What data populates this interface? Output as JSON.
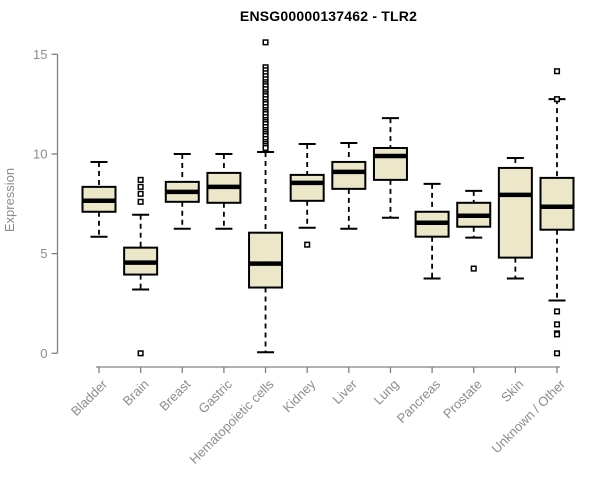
{
  "title": "ENSG00000137462 - TLR2",
  "chart_data": {
    "type": "boxplot",
    "title": "ENSG00000137462 - TLR2",
    "xlabel": "",
    "ylabel": "Expression",
    "ylim": [
      0,
      15.6
    ],
    "yticks": [
      0,
      5,
      10,
      15
    ],
    "grid": false,
    "legend": "none",
    "categories": [
      "Bladder",
      "Brain",
      "Breast",
      "Gastric",
      "Hematopoietic cells",
      "Kidney",
      "Liver",
      "Lung",
      "Pancreas",
      "Prostate",
      "Skin",
      "Unknown / Other"
    ],
    "boxes": [
      {
        "category": "Bladder",
        "low": 5.85,
        "q1": 7.1,
        "median": 7.65,
        "q3": 8.35,
        "high": 9.6,
        "outliers": []
      },
      {
        "category": "Brain",
        "low": 3.2,
        "q1": 3.95,
        "median": 4.55,
        "q3": 5.3,
        "high": 6.95,
        "outliers": [
          8.7,
          8.35,
          8.0,
          7.6,
          0.0
        ]
      },
      {
        "category": "Breast",
        "low": 6.25,
        "q1": 7.6,
        "median": 8.1,
        "q3": 8.6,
        "high": 10.0,
        "outliers": []
      },
      {
        "category": "Gastric",
        "low": 6.25,
        "q1": 7.55,
        "median": 8.35,
        "q3": 9.05,
        "high": 10.0,
        "outliers": []
      },
      {
        "category": "Hematopoietic cells",
        "low": 0.05,
        "q1": 3.3,
        "median": 4.5,
        "q3": 6.05,
        "high": 10.1,
        "outliers": [
          15.6,
          14.35,
          14.2,
          14.05,
          13.9,
          13.75,
          13.6,
          13.5,
          13.4,
          13.25,
          13.1,
          13.0,
          12.9,
          12.75,
          12.6,
          12.5,
          12.35,
          12.2,
          12.1,
          12.0,
          11.85,
          11.7,
          11.6,
          11.5,
          11.35,
          11.2,
          11.1,
          11.0,
          10.9,
          10.75,
          10.6,
          10.5,
          10.4,
          10.3
        ]
      },
      {
        "category": "Kidney",
        "low": 6.3,
        "q1": 7.65,
        "median": 8.55,
        "q3": 8.95,
        "high": 10.5,
        "outliers": [
          5.45
        ]
      },
      {
        "category": "Liver",
        "low": 6.25,
        "q1": 8.25,
        "median": 9.1,
        "q3": 9.6,
        "high": 10.55,
        "outliers": []
      },
      {
        "category": "Lung",
        "low": 6.8,
        "q1": 8.7,
        "median": 9.9,
        "q3": 10.3,
        "high": 11.8,
        "outliers": []
      },
      {
        "category": "Pancreas",
        "low": 3.75,
        "q1": 5.85,
        "median": 6.55,
        "q3": 7.1,
        "high": 8.5,
        "outliers": []
      },
      {
        "category": "Prostate",
        "low": 5.8,
        "q1": 6.35,
        "median": 6.9,
        "q3": 7.55,
        "high": 8.15,
        "outliers": [
          4.25
        ]
      },
      {
        "category": "Skin",
        "low": 3.75,
        "q1": 4.8,
        "median": 7.95,
        "q3": 9.3,
        "high": 9.8,
        "outliers": []
      },
      {
        "category": "Unknown / Other",
        "low": 2.65,
        "q1": 6.2,
        "median": 7.35,
        "q3": 8.8,
        "high": 12.75,
        "outliers": [
          14.15,
          12.75,
          2.1,
          1.45,
          1.0,
          0.95,
          0.0
        ]
      }
    ],
    "colors": {
      "box_fill": "#EDE7CA",
      "box_stroke": "#000000",
      "median": "#000000",
      "axis": "#808080",
      "tick_label": "#8C8C8C",
      "title": "#000000",
      "background": "#FFFFFF"
    }
  }
}
